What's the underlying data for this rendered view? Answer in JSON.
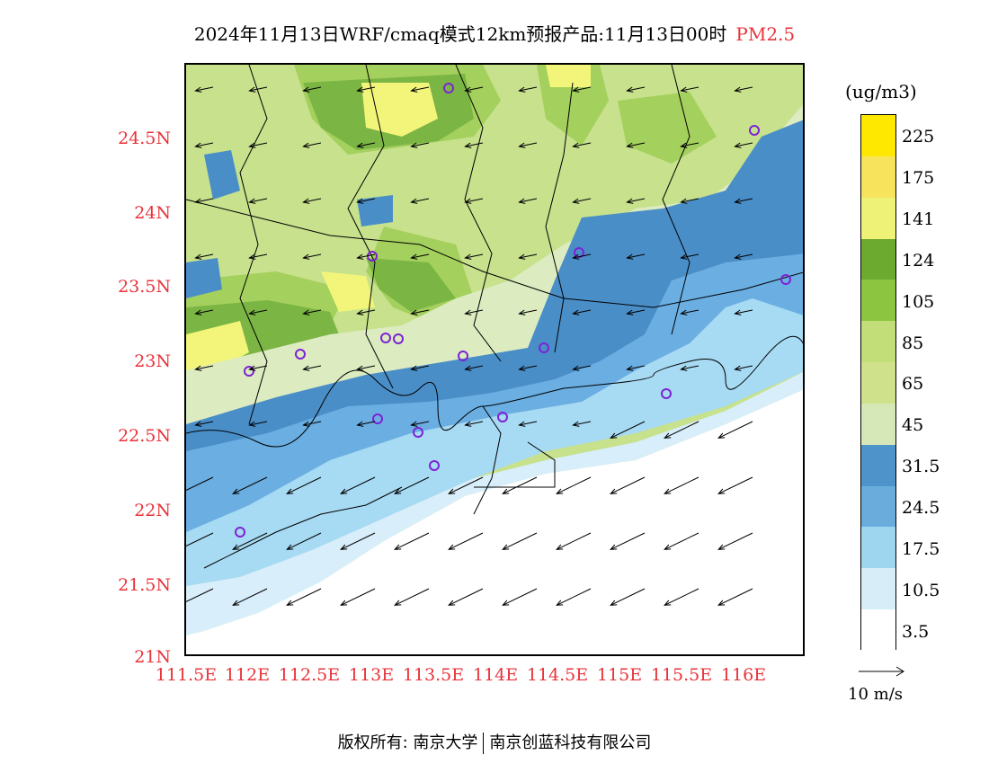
{
  "title": {
    "main": "2024年11月13日WRF/cmaq模式12km预报产品:11月13日00时",
    "product": "PM2.5"
  },
  "y_axis": [
    "24.5N",
    "24N",
    "23.5N",
    "23N",
    "22.5N",
    "22N",
    "21.5N",
    "21N"
  ],
  "x_axis": [
    "111.5E",
    "112E",
    "112.5E",
    "113E",
    "113.5E",
    "114E",
    "114.5E",
    "115E",
    "115.5E",
    "116E"
  ],
  "colorbar": {
    "unit": "(ug/m3)",
    "colors": [
      "#7d22d6",
      "#9b2fd0",
      "#ac2e58",
      "#c21285",
      "#ff0000",
      "#f00050",
      "#f0304c",
      "#fa6464",
      "#e8562d",
      "#ff8c00",
      "#f5a22f",
      "#ffb400",
      "#ffe800",
      "#f7e45c",
      "#eef277",
      "#6caa2f",
      "#8cc640",
      "#c1de78",
      "#cfe18a",
      "#d6e8b8",
      "#4f93cb",
      "#6aaddd",
      "#9ed6f0",
      "#d7eef9",
      "#ffffff"
    ],
    "labels": [
      "225",
      "175",
      "141",
      "124",
      "105",
      "85",
      "65",
      "45",
      "31.5",
      "24.5",
      "17.5",
      "10.5",
      "3.5"
    ],
    "palette": {
      "light_green": "#c7e18d",
      "mid_green": "#a4d05d",
      "dark_green": "#7bb544",
      "pale_green": "#dcebc0",
      "yellow": "#f2f57a",
      "blue_dark": "#4a8ec8",
      "blue_mid": "#6aaee2",
      "blue_light": "#a7daf3",
      "blue_pale": "#d8eefa"
    }
  },
  "wind_reference": "10  m/s",
  "credit": {
    "left": "版权所有: 南京大学",
    "right": "南京创蓝科技有限公司"
  }
}
